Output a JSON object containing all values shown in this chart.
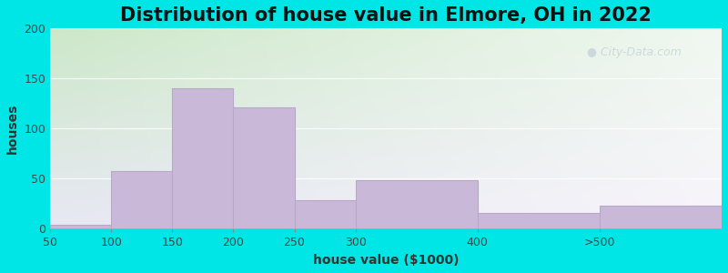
{
  "title": "Distribution of house value in Elmore, OH in 2022",
  "xlabel": "house value ($1000)",
  "ylabel": "houses",
  "tick_positions": [
    50,
    100,
    150,
    200,
    250,
    300,
    400,
    500
  ],
  "tick_labels": [
    "50",
    "100",
    "150",
    "200",
    "250",
    "300",
    "400",
    ">500"
  ],
  "bar_lefts": [
    50,
    100,
    150,
    200,
    250,
    300,
    400,
    500
  ],
  "bar_widths": [
    50,
    50,
    50,
    50,
    50,
    100,
    100,
    100
  ],
  "bar_values": [
    4,
    58,
    140,
    121,
    29,
    49,
    16,
    23
  ],
  "bar_color": "#c9b8d8",
  "bar_edge_color": "#b8a8c8",
  "ylim": [
    0,
    200
  ],
  "xlim": [
    50,
    600
  ],
  "yticks": [
    0,
    50,
    100,
    150,
    200
  ],
  "background_outer": "#00e5e5",
  "background_inner_top_left": "#d8ecd0",
  "background_inner_top_right": "#e8f4e0",
  "background_inner_bottom": "#f0eef8",
  "title_fontsize": 15,
  "axis_label_fontsize": 10,
  "tick_fontsize": 9,
  "watermark_text": "City-Data.com",
  "watermark_color": "#b8c8d4",
  "watermark_alpha": 0.6
}
